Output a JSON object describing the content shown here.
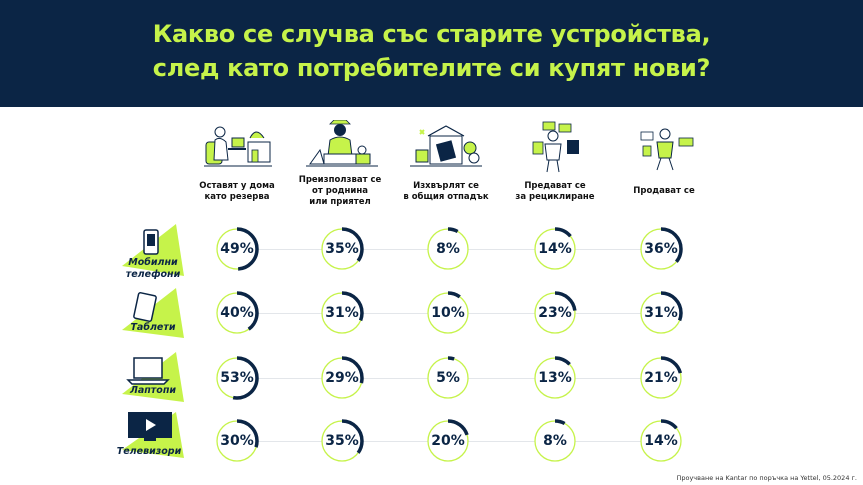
{
  "title": {
    "line1": "Какво се случва със старите устройства,",
    "line2": "след като потребителите си купят нови?"
  },
  "colors": {
    "header_bg": "#0b2545",
    "accent_green": "#c6f34a",
    "ring_track": "#c6f34a",
    "ring_fill": "#0b2545"
  },
  "chart_data": {
    "type": "table",
    "columns": [
      {
        "label": "Оставят у дома като резерва",
        "lines": [
          "Оставят у дома",
          "като резерва"
        ],
        "icon": "person-at-desk-illustration"
      },
      {
        "label": "Преизползват се от роднина или приятел",
        "lines": [
          "Преизползват се",
          "от роднина",
          "или приятел"
        ],
        "icon": "family-sharing-illustration"
      },
      {
        "label": "Изхвърлят се в общия отпадък",
        "lines": [
          "Изхвърлят се",
          "в общия отпадък"
        ],
        "icon": "waste-bin-illustration"
      },
      {
        "label": "Предават се за рециклиране",
        "lines": [
          "Предават се",
          "за рециклиране"
        ],
        "icon": "recycling-illustration"
      },
      {
        "label": "Продават се",
        "lines": [
          "Продават се"
        ],
        "icon": "selling-illustration"
      }
    ],
    "rows": [
      {
        "label": "Мобилни телефони",
        "lines": [
          "Мобилни",
          "телефони"
        ],
        "icon": "mobile-phone-icon",
        "values": [
          49,
          35,
          8,
          14,
          36
        ]
      },
      {
        "label": "Таблети",
        "lines": [
          "Таблети"
        ],
        "icon": "tablet-icon",
        "values": [
          40,
          31,
          10,
          23,
          31
        ]
      },
      {
        "label": "Лаптопи",
        "lines": [
          "Лаптопи"
        ],
        "icon": "laptop-icon",
        "values": [
          53,
          29,
          5,
          13,
          21
        ]
      },
      {
        "label": "Телевизори",
        "lines": [
          "Телевизори"
        ],
        "icon": "tv-icon",
        "values": [
          30,
          35,
          20,
          8,
          14
        ]
      }
    ],
    "unit": "%"
  },
  "footnote": "Проучване на Kantar по поръчка на Yettel, 05.2024 г."
}
